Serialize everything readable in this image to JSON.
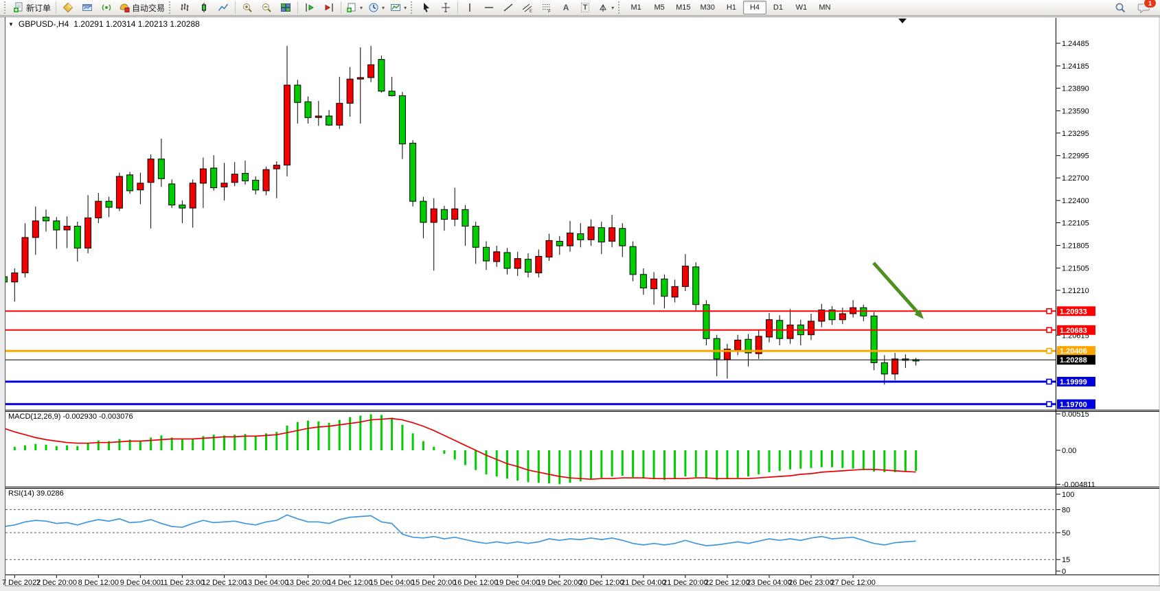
{
  "icons": {
    "dropdown": "▾",
    "title_dropdown": "▼",
    "letter_a": "A",
    "letter_t": "T"
  },
  "toolbar": {
    "new_order_label": "新订单",
    "autotrade_label": "自动交易",
    "timeframes": [
      "M1",
      "M5",
      "M15",
      "M30",
      "H1",
      "H4",
      "D1",
      "W1",
      "MN"
    ],
    "active_timeframe": "H4",
    "chat_badge": "1"
  },
  "chart_data": {
    "type": "candlestick",
    "symbol_period": "GBPUSD-,H4",
    "ohlc_text": "1.20291 1.20314 1.20213 1.20288",
    "colors": {
      "bull": "#F00000",
      "bear": "#00CD00",
      "wick": "#000000",
      "macd_hist": "#00CD00",
      "macd_signal": "#E80000",
      "rsi_line": "#3E96DC",
      "arrow": "#4E8F22"
    },
    "price_axis": {
      "ticks": [
        "1.24485",
        "1.24185",
        "1.23890",
        "1.23590",
        "1.23295",
        "1.22995",
        "1.22700",
        "1.22400",
        "1.22105",
        "1.21805",
        "1.21505",
        "1.21210",
        "1.20615"
      ]
    },
    "hlines": [
      {
        "price": 1.20933,
        "label": "1.20933",
        "color": "#FF0000",
        "width": 2
      },
      {
        "price": 1.20683,
        "label": "1.20683",
        "color": "#FF0000",
        "width": 2
      },
      {
        "price": 1.20406,
        "label": "1.20406",
        "color": "#FFA500",
        "width": 3
      },
      {
        "price": 1.19999,
        "label": "1.19999",
        "color": "#0000E0",
        "width": 3
      },
      {
        "price": 1.197,
        "label": "1.19700",
        "color": "#0000E0",
        "width": 3
      }
    ],
    "current_price_line": {
      "price": 1.20288,
      "label": "1.20288",
      "color": "#000000",
      "width": 1
    },
    "arrow": {
      "from": [
        1272,
        383
      ],
      "to": [
        1345,
        465
      ]
    },
    "candles": [
      [
        1.2139,
        1.2143,
        1.2124,
        1.2132
      ],
      [
        1.2132,
        1.215,
        1.2106,
        1.2144
      ],
      [
        1.2144,
        1.221,
        1.2138,
        1.2191
      ],
      [
        1.2191,
        1.2232,
        1.2168,
        1.2213
      ],
      [
        1.2218,
        1.2228,
        1.2199,
        1.2213
      ],
      [
        1.2213,
        1.2218,
        1.2176,
        1.2201
      ],
      [
        1.2201,
        1.2219,
        1.2177,
        1.2206
      ],
      [
        1.2206,
        1.2212,
        1.2159,
        1.2177
      ],
      [
        1.2177,
        1.2247,
        1.217,
        1.2217
      ],
      [
        1.2217,
        1.225,
        1.221,
        1.2239
      ],
      [
        1.2239,
        1.2245,
        1.2218,
        1.2231
      ],
      [
        1.223,
        1.2277,
        1.2226,
        1.2272
      ],
      [
        1.2274,
        1.2278,
        1.2249,
        1.2253
      ],
      [
        1.2254,
        1.2277,
        1.2235,
        1.2263
      ],
      [
        1.2264,
        1.2301,
        1.2203,
        1.2295
      ],
      [
        1.2295,
        1.2322,
        1.2258,
        1.2269
      ],
      [
        1.2262,
        1.2268,
        1.223,
        1.2234
      ],
      [
        1.2234,
        1.224,
        1.221,
        1.223
      ],
      [
        1.223,
        1.2268,
        1.2204,
        1.2263
      ],
      [
        1.2263,
        1.2297,
        1.223,
        1.2282
      ],
      [
        1.2283,
        1.23,
        1.2253,
        1.2257
      ],
      [
        1.2258,
        1.229,
        1.224,
        1.2263
      ],
      [
        1.2264,
        1.2291,
        1.2259,
        1.2275
      ],
      [
        1.2276,
        1.2293,
        1.2261,
        1.2266
      ],
      [
        1.2267,
        1.2272,
        1.2248,
        1.2254
      ],
      [
        1.2253,
        1.2285,
        1.2247,
        1.2281
      ],
      [
        1.2282,
        1.2292,
        1.2243,
        1.2287
      ],
      [
        1.2287,
        1.2445,
        1.2272,
        1.2393
      ],
      [
        1.2393,
        1.24,
        1.2342,
        1.237
      ],
      [
        1.2371,
        1.2378,
        1.2342,
        1.235
      ],
      [
        1.235,
        1.2372,
        1.2339,
        1.2352
      ],
      [
        1.2352,
        1.236,
        1.2339,
        1.234
      ],
      [
        1.234,
        1.2404,
        1.2335,
        1.2369
      ],
      [
        1.2369,
        1.2417,
        1.2351,
        1.2401
      ],
      [
        1.2401,
        1.2443,
        1.2342,
        1.2403
      ],
      [
        1.2403,
        1.2445,
        1.2397,
        1.242
      ],
      [
        1.2427,
        1.2432,
        1.2383,
        1.2385
      ],
      [
        1.2385,
        1.2404,
        1.2378,
        1.2379
      ],
      [
        1.2379,
        1.2384,
        1.2295,
        1.2315
      ],
      [
        1.2316,
        1.232,
        1.2232,
        1.2239
      ],
      [
        1.2239,
        1.2245,
        1.219,
        1.2211
      ],
      [
        1.2211,
        1.2243,
        1.2147,
        1.2229
      ],
      [
        1.2228,
        1.2233,
        1.22,
        1.2215
      ],
      [
        1.2215,
        1.2257,
        1.2206,
        1.2229
      ],
      [
        1.2228,
        1.2234,
        1.218,
        1.2206
      ],
      [
        1.2206,
        1.2212,
        1.2156,
        1.2178
      ],
      [
        1.2178,
        1.2186,
        1.2148,
        1.216
      ],
      [
        1.2159,
        1.218,
        1.2152,
        1.2172
      ],
      [
        1.2171,
        1.2177,
        1.2142,
        1.215
      ],
      [
        1.215,
        1.2172,
        1.214,
        1.2163
      ],
      [
        1.2162,
        1.217,
        1.2138,
        1.2145
      ],
      [
        1.2144,
        1.2175,
        1.2138,
        1.2166
      ],
      [
        1.2165,
        1.2196,
        1.216,
        1.2187
      ],
      [
        1.2186,
        1.2193,
        1.2168,
        1.218
      ],
      [
        1.218,
        1.2213,
        1.2172,
        1.2197
      ],
      [
        1.2196,
        1.221,
        1.2178,
        1.2188
      ],
      [
        1.2188,
        1.2215,
        1.218,
        1.2205
      ],
      [
        1.2204,
        1.2212,
        1.2169,
        1.2185
      ],
      [
        1.2186,
        1.2221,
        1.2178,
        1.2204
      ],
      [
        1.2203,
        1.221,
        1.2165,
        1.218
      ],
      [
        1.2179,
        1.2186,
        1.2133,
        1.2142
      ],
      [
        1.2142,
        1.215,
        1.2115,
        1.2124
      ],
      [
        1.2123,
        1.2145,
        1.2102,
        1.2136
      ],
      [
        1.2136,
        1.2142,
        1.2097,
        1.2113
      ],
      [
        1.2112,
        1.2135,
        1.2105,
        1.2126
      ],
      [
        1.2126,
        1.2169,
        1.212,
        1.2153
      ],
      [
        1.2152,
        1.2158,
        1.2093,
        1.2102
      ],
      [
        1.2102,
        1.2108,
        1.2048,
        1.2057
      ],
      [
        1.2057,
        1.2062,
        1.2007,
        1.203
      ],
      [
        1.2029,
        1.205,
        1.2004,
        1.2043
      ],
      [
        1.2042,
        1.2062,
        1.2035,
        1.2055
      ],
      [
        1.2056,
        1.2063,
        1.202,
        1.2038
      ],
      [
        1.2037,
        1.2068,
        1.203,
        1.206
      ],
      [
        1.2059,
        1.2091,
        1.2052,
        1.2082
      ],
      [
        1.2081,
        1.2088,
        1.2048,
        1.2057
      ],
      [
        1.2057,
        1.2096,
        1.205,
        1.2075
      ],
      [
        1.2075,
        1.2082,
        1.2048,
        1.2062
      ],
      [
        1.2062,
        1.209,
        1.2055,
        1.208
      ],
      [
        1.208,
        1.2103,
        1.2072,
        1.2095
      ],
      [
        1.2095,
        1.21,
        1.2075,
        1.2082
      ],
      [
        1.2082,
        1.2098,
        1.2076,
        1.209
      ],
      [
        1.209,
        1.2108,
        1.2085,
        1.2098
      ],
      [
        1.2098,
        1.2102,
        1.208,
        1.2087
      ],
      [
        1.2087,
        1.2092,
        1.2015,
        1.2025
      ],
      [
        1.2025,
        1.2035,
        1.1996,
        1.201
      ],
      [
        1.201,
        1.2038,
        1.2002,
        1.203
      ],
      [
        1.203,
        1.2036,
        1.2018,
        1.2029
      ],
      [
        1.20291,
        1.20314,
        1.20213,
        1.20288
      ]
    ],
    "macd": {
      "label": "MACD(12,26,9)",
      "values_text": "-0.002930 -0.003076",
      "axis": [
        "0.00515",
        "0.00",
        "-0.004811"
      ],
      "histogram": [
        0.0004,
        0.0005,
        0.0007,
        0.0009,
        0.0008,
        0.0006,
        0.0007,
        0.0006,
        0.001,
        0.0014,
        0.0013,
        0.0016,
        0.0015,
        0.0014,
        0.0018,
        0.0021,
        0.0018,
        0.0015,
        0.0017,
        0.002,
        0.0022,
        0.0021,
        0.0022,
        0.0023,
        0.0021,
        0.0024,
        0.0026,
        0.0035,
        0.004,
        0.0042,
        0.0041,
        0.0039,
        0.0043,
        0.0047,
        0.0049,
        0.0051,
        0.005,
        0.0046,
        0.0036,
        0.0024,
        0.0013,
        0.0005,
        -0.0005,
        -0.0013,
        -0.0021,
        -0.0028,
        -0.0034,
        -0.0037,
        -0.004,
        -0.0043,
        -0.0045,
        -0.0046,
        -0.0047,
        -0.0048,
        -0.0046,
        -0.0044,
        -0.0041,
        -0.0039,
        -0.0037,
        -0.0036,
        -0.0038,
        -0.004,
        -0.0041,
        -0.0042,
        -0.004,
        -0.0037,
        -0.0038,
        -0.004,
        -0.0042,
        -0.0041,
        -0.0039,
        -0.0037,
        -0.0034,
        -0.0031,
        -0.0029,
        -0.0027,
        -0.0026,
        -0.0025,
        -0.0024,
        -0.0024,
        -0.0025,
        -0.0026,
        -0.0028,
        -0.003,
        -0.0031,
        -0.0031,
        -0.003,
        -0.00293
      ],
      "signal": [
        0.0031,
        0.0026,
        0.0022,
        0.0018,
        0.0015,
        0.0013,
        0.0011,
        0.001,
        0.001,
        0.0011,
        0.0011,
        0.0012,
        0.0013,
        0.0013,
        0.0014,
        0.0015,
        0.0016,
        0.0016,
        0.0016,
        0.0017,
        0.0018,
        0.0019,
        0.0019,
        0.002,
        0.002,
        0.0021,
        0.0022,
        0.0025,
        0.0028,
        0.0031,
        0.0033,
        0.0034,
        0.0036,
        0.0038,
        0.004,
        0.0043,
        0.0044,
        0.0045,
        0.0043,
        0.0039,
        0.0034,
        0.0028,
        0.0021,
        0.0014,
        0.0007,
        0.0,
        -0.0007,
        -0.0013,
        -0.0019,
        -0.0023,
        -0.0028,
        -0.0031,
        -0.0034,
        -0.0037,
        -0.0039,
        -0.004,
        -0.0041,
        -0.004,
        -0.004,
        -0.0039,
        -0.0039,
        -0.0039,
        -0.004,
        -0.004,
        -0.004,
        -0.004,
        -0.0039,
        -0.0039,
        -0.004,
        -0.004,
        -0.004,
        -0.004,
        -0.0039,
        -0.0038,
        -0.0037,
        -0.0036,
        -0.0034,
        -0.0033,
        -0.0031,
        -0.003,
        -0.0029,
        -0.0028,
        -0.0027,
        -0.0027,
        -0.0028,
        -0.0029,
        -0.003,
        -0.003076
      ]
    },
    "rsi": {
      "label": "RSI(14)",
      "value_text": "39.0286",
      "levels": [
        80,
        50,
        15
      ],
      "axis": [
        "100",
        "80",
        "50",
        "15",
        "0"
      ],
      "values": [
        58,
        60,
        64,
        66,
        65,
        62,
        63,
        60,
        64,
        67,
        65,
        68,
        63,
        64,
        67,
        62,
        58,
        57,
        62,
        66,
        63,
        64,
        65,
        62,
        60,
        64,
        66,
        73,
        68,
        64,
        64,
        62,
        67,
        70,
        71,
        72,
        64,
        62,
        48,
        44,
        43,
        45,
        42,
        44,
        41,
        38,
        36,
        38,
        36,
        38,
        36,
        38,
        42,
        40,
        42,
        41,
        43,
        41,
        43,
        40,
        36,
        34,
        36,
        34,
        36,
        40,
        36,
        33,
        34,
        36,
        38,
        36,
        39,
        42,
        40,
        42,
        40,
        43,
        45,
        42,
        43,
        44,
        40,
        36,
        34,
        37,
        38,
        39.0286
      ]
    },
    "time_axis": {
      "labels": [
        "7 Dec 2022",
        "7 Dec 20:00",
        "8 Dec 12:00",
        "9 Dec 04:00",
        "11 Dec 23:00",
        "12 Dec 12:00",
        "13 Dec 04:00",
        "13 Dec 20:00",
        "14 Dec 12:00",
        "15 Dec 04:00",
        "15 Dec 20:00",
        "16 Dec 12:00",
        "19 Dec 04:00",
        "19 Dec 20:00",
        "20 Dec 12:00",
        "21 Dec 04:00",
        "21 Dec 20:00",
        "22 Dec 12:00",
        "23 Dec 04:00",
        "26 Dec 23:00",
        "27 Dec 12:00"
      ],
      "first_candle_index": 1,
      "candle_step": 4
    }
  }
}
